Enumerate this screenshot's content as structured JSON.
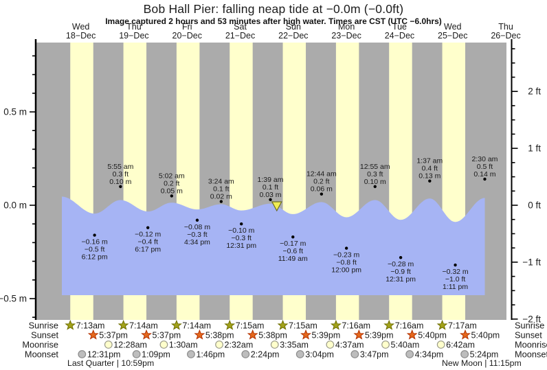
{
  "title": "Bob Hall Pier: falling  neap tide at −0.0m (−0.0ft)",
  "subtitle": "Image captured 2 hours and 53 minutes after high water. Times are CST (UTC −6.0hrs)",
  "colors": {
    "night_band": "#ABABAB",
    "day_band": "#FFFFCC",
    "water": "#A6B4F4",
    "date_label": "#E82B1C",
    "axis": "#000000",
    "annotation_text": "#1a1a1a",
    "sunrise_star": "#A2A21A",
    "sunrise_star_edge": "#6E6E00",
    "sunset_star": "#E5681C",
    "sunset_star_edge": "#B23000",
    "moonrise_circle": "#FFFFCC",
    "moonrise_circle_edge": "#9A9A8A",
    "moonset_circle": "#BDBDBD",
    "moonset_circle_edge": "#8A8A8A",
    "marker_fill": "#F0EC55",
    "marker_edge": "#6B6B20"
  },
  "days": [
    {
      "weekday": "Wed",
      "date": "18−Dec"
    },
    {
      "weekday": "Thu",
      "date": "19−Dec"
    },
    {
      "weekday": "Fri",
      "date": "20−Dec"
    },
    {
      "weekday": "Sat",
      "date": "21−Dec"
    },
    {
      "weekday": "Sun",
      "date": "22−Dec"
    },
    {
      "weekday": "Mon",
      "date": "23−Dec"
    },
    {
      "weekday": "Tue",
      "date": "24−Dec"
    },
    {
      "weekday": "Wed",
      "date": "25−Dec"
    },
    {
      "weekday": "Thu",
      "date": "26−Dec"
    }
  ],
  "y_axis_left": {
    "unit": "m",
    "major_values": [
      0.5,
      0,
      -0.5
    ],
    "major_labels": [
      "0.5 m",
      "0.0 m",
      "−0.5 m"
    ],
    "minor_step": 0.1
  },
  "y_axis_right": {
    "unit": "ft",
    "major_values": [
      2,
      1,
      0,
      -1,
      -2
    ],
    "major_labels": [
      "2 ft",
      "1 ft",
      "0 ft",
      "−1 ft",
      "−2 ft"
    ],
    "minor_step": 0.25
  },
  "chart_data": {
    "type": "area",
    "ylim_m": [
      -0.61,
      0.87
    ],
    "water_fill_bottom_m": -0.48,
    "curve_start": {
      "day_index": 0,
      "time": "3:25 am",
      "level_m": 0.165
    },
    "high_tides": [
      {
        "day_index": 1,
        "time": "5:55 am",
        "ft_label": "0.3 ft",
        "m_label": "0.10 m",
        "m": 0.1
      },
      {
        "day_index": 2,
        "time": "5:02 am",
        "ft_label": "0.2 ft",
        "m_label": "0.05 m",
        "m": 0.05
      },
      {
        "day_index": 3,
        "time": "3:24 am",
        "ft_label": "0.1 ft",
        "m_label": "0.02 m",
        "m": 0.02
      },
      {
        "day_index": 4,
        "time": "1:39 am",
        "ft_label": "0.1 ft",
        "m_label": "0.03 m",
        "m": 0.03
      },
      {
        "day_index": 5,
        "time": "12:44 am",
        "ft_label": "0.2 ft",
        "m_label": "0.06 m",
        "m": 0.06
      },
      {
        "day_index": 6,
        "time": "12:55 am",
        "ft_label": "0.3 ft",
        "m_label": "0.10 m",
        "m": 0.1
      },
      {
        "day_index": 7,
        "time": "1:37 am",
        "ft_label": "0.4 ft",
        "m_label": "0.13 m",
        "m": 0.13
      },
      {
        "day_index": 8,
        "time": "2:30 am",
        "ft_label": "0.5 ft",
        "m_label": "0.14 m",
        "m": 0.14
      }
    ],
    "low_tides": [
      {
        "day_index": 0,
        "time": "6:12 pm",
        "m_label": "−0.16 m",
        "ft_label": "−0.5 ft",
        "m": -0.16
      },
      {
        "day_index": 1,
        "time": "6:17 pm",
        "m_label": "−0.12 m",
        "ft_label": "−0.4 ft",
        "m": -0.12
      },
      {
        "day_index": 2,
        "time": "4:34 pm",
        "m_label": "−0.08 m",
        "ft_label": "−0.3 ft",
        "m": -0.08
      },
      {
        "day_index": 3,
        "time": "12:31 pm",
        "m_label": "−0.10 m",
        "ft_label": "−0.3 ft",
        "m": -0.1
      },
      {
        "day_index": 4,
        "time": "11:49 am",
        "m_label": "−0.17 m",
        "ft_label": "−0.6 ft",
        "m": -0.17
      },
      {
        "day_index": 5,
        "time": "12:00 pm",
        "m_label": "−0.23 m",
        "ft_label": "−0.8 ft",
        "m": -0.23
      },
      {
        "day_index": 6,
        "time": "12:31 pm",
        "m_label": "−0.28 m",
        "ft_label": "−0.9 ft",
        "m": -0.28
      },
      {
        "day_index": 7,
        "time": "1:11 pm",
        "m_label": "−0.32 m",
        "ft_label": "−1.0 ft",
        "m": -0.32
      }
    ],
    "current_time_marker": {
      "day_index": 4,
      "time": "4:32 am",
      "level_m": 0.0
    }
  },
  "astro": {
    "row_labels": [
      "Sunrise",
      "Sunset",
      "Moonrise",
      "Moonset"
    ],
    "sunrise": [
      "7:13am",
      "7:14am",
      "7:14am",
      "7:15am",
      "7:15am",
      "7:16am",
      "7:16am",
      "7:17am"
    ],
    "sunset": [
      "5:37pm",
      "5:37pm",
      "5:38pm",
      "5:38pm",
      "5:39pm",
      "5:39pm",
      "5:40pm",
      "5:40pm"
    ],
    "moonrise_first_day_index": 1,
    "moonrise": [
      "12:28am",
      "1:30am",
      "2:32am",
      "3:35am",
      "4:37am",
      "5:40am",
      "6:42am"
    ],
    "moonset": [
      "12:31pm",
      "1:09pm",
      "1:46pm",
      "2:24pm",
      "3:04pm",
      "3:47pm",
      "4:34pm",
      "5:24pm"
    ],
    "moon_phases": [
      {
        "label": "Last Quarter | 10:59pm"
      },
      {
        "label": "New Moon | 11:15pm"
      }
    ]
  }
}
